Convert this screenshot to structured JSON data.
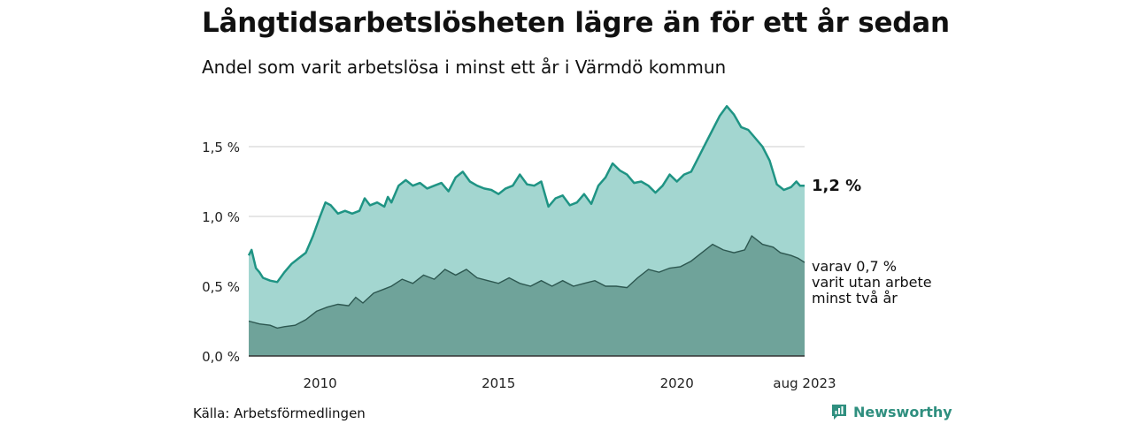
{
  "title": "Långtidsarbetslösheten lägre än för ett år sedan",
  "subtitle": "Andel som varit arbetslösa i minst ett år i Värmdö kommun",
  "source": "Källa: Arbetsförmedlingen",
  "brand": {
    "name": "Newsworthy",
    "icon": "newsworthy-logo-icon",
    "color": "#2f8f7f"
  },
  "chart_data": {
    "type": "area",
    "title": "Långtidsarbetslösheten lägre än för ett år sedan",
    "subtitle": "Andel som varit arbetslösa i minst ett år i Värmdö kommun",
    "unit": "%",
    "x_range": [
      2008.0,
      2023.58
    ],
    "ylim": [
      0,
      1.85
    ],
    "y_ticks": [
      {
        "value": 0.0,
        "label": "0,0 %"
      },
      {
        "value": 0.5,
        "label": "0,5 %"
      },
      {
        "value": 1.0,
        "label": "1,0 %"
      },
      {
        "value": 1.5,
        "label": "1,5 %"
      }
    ],
    "x_ticks": [
      {
        "value": 2010,
        "label": "2010"
      },
      {
        "value": 2015,
        "label": "2015"
      },
      {
        "value": 2020,
        "label": "2020"
      },
      {
        "value": 2023.58,
        "label": "aug 2023"
      }
    ],
    "grid": true,
    "colors": {
      "total_fill": "#a3d6d0",
      "total_line": "#1f9484",
      "sub_fill": "#6fa39a",
      "sub_line": "#2d5750",
      "grid": "#dddddd"
    },
    "end_labels": {
      "total": "1,2 %",
      "sub": [
        "varav 0,7 %",
        "varit utan arbete",
        "minst två år"
      ]
    },
    "series": [
      {
        "name": "minst ett år",
        "points": [
          [
            2008.0,
            0.72
          ],
          [
            2008.08,
            0.76
          ],
          [
            2008.2,
            0.63
          ],
          [
            2008.3,
            0.6
          ],
          [
            2008.4,
            0.56
          ],
          [
            2008.6,
            0.54
          ],
          [
            2008.8,
            0.53
          ],
          [
            2009.0,
            0.6
          ],
          [
            2009.2,
            0.66
          ],
          [
            2009.4,
            0.7
          ],
          [
            2009.6,
            0.74
          ],
          [
            2009.8,
            0.86
          ],
          [
            2010.0,
            1.0
          ],
          [
            2010.15,
            1.1
          ],
          [
            2010.3,
            1.08
          ],
          [
            2010.5,
            1.02
          ],
          [
            2010.7,
            1.04
          ],
          [
            2010.9,
            1.02
          ],
          [
            2011.1,
            1.04
          ],
          [
            2011.25,
            1.13
          ],
          [
            2011.4,
            1.08
          ],
          [
            2011.6,
            1.1
          ],
          [
            2011.8,
            1.07
          ],
          [
            2011.9,
            1.14
          ],
          [
            2012.0,
            1.1
          ],
          [
            2012.2,
            1.22
          ],
          [
            2012.4,
            1.26
          ],
          [
            2012.6,
            1.22
          ],
          [
            2012.8,
            1.24
          ],
          [
            2013.0,
            1.2
          ],
          [
            2013.2,
            1.22
          ],
          [
            2013.4,
            1.24
          ],
          [
            2013.6,
            1.18
          ],
          [
            2013.8,
            1.28
          ],
          [
            2014.0,
            1.32
          ],
          [
            2014.2,
            1.25
          ],
          [
            2014.4,
            1.22
          ],
          [
            2014.6,
            1.2
          ],
          [
            2014.8,
            1.19
          ],
          [
            2015.0,
            1.16
          ],
          [
            2015.2,
            1.2
          ],
          [
            2015.4,
            1.22
          ],
          [
            2015.6,
            1.3
          ],
          [
            2015.8,
            1.23
          ],
          [
            2016.0,
            1.22
          ],
          [
            2016.2,
            1.25
          ],
          [
            2016.4,
            1.07
          ],
          [
            2016.6,
            1.13
          ],
          [
            2016.8,
            1.15
          ],
          [
            2017.0,
            1.08
          ],
          [
            2017.2,
            1.1
          ],
          [
            2017.4,
            1.16
          ],
          [
            2017.6,
            1.09
          ],
          [
            2017.8,
            1.22
          ],
          [
            2018.0,
            1.28
          ],
          [
            2018.2,
            1.38
          ],
          [
            2018.4,
            1.33
          ],
          [
            2018.6,
            1.3
          ],
          [
            2018.8,
            1.24
          ],
          [
            2019.0,
            1.25
          ],
          [
            2019.2,
            1.22
          ],
          [
            2019.4,
            1.17
          ],
          [
            2019.6,
            1.22
          ],
          [
            2019.8,
            1.3
          ],
          [
            2020.0,
            1.25
          ],
          [
            2020.2,
            1.3
          ],
          [
            2020.4,
            1.32
          ],
          [
            2020.6,
            1.42
          ],
          [
            2020.8,
            1.52
          ],
          [
            2021.0,
            1.62
          ],
          [
            2021.2,
            1.72
          ],
          [
            2021.4,
            1.79
          ],
          [
            2021.6,
            1.73
          ],
          [
            2021.8,
            1.64
          ],
          [
            2022.0,
            1.62
          ],
          [
            2022.2,
            1.56
          ],
          [
            2022.4,
            1.5
          ],
          [
            2022.6,
            1.4
          ],
          [
            2022.8,
            1.23
          ],
          [
            2023.0,
            1.19
          ],
          [
            2023.2,
            1.21
          ],
          [
            2023.35,
            1.25
          ],
          [
            2023.45,
            1.22
          ],
          [
            2023.58,
            1.22
          ]
        ]
      },
      {
        "name": "varit utan arbete minst två år",
        "points": [
          [
            2008.0,
            0.25
          ],
          [
            2008.3,
            0.23
          ],
          [
            2008.6,
            0.22
          ],
          [
            2008.8,
            0.2
          ],
          [
            2009.0,
            0.21
          ],
          [
            2009.3,
            0.22
          ],
          [
            2009.6,
            0.26
          ],
          [
            2009.9,
            0.32
          ],
          [
            2010.2,
            0.35
          ],
          [
            2010.5,
            0.37
          ],
          [
            2010.8,
            0.36
          ],
          [
            2011.0,
            0.42
          ],
          [
            2011.2,
            0.38
          ],
          [
            2011.5,
            0.45
          ],
          [
            2011.8,
            0.48
          ],
          [
            2012.0,
            0.5
          ],
          [
            2012.3,
            0.55
          ],
          [
            2012.6,
            0.52
          ],
          [
            2012.9,
            0.58
          ],
          [
            2013.2,
            0.55
          ],
          [
            2013.5,
            0.62
          ],
          [
            2013.8,
            0.58
          ],
          [
            2014.1,
            0.62
          ],
          [
            2014.4,
            0.56
          ],
          [
            2014.7,
            0.54
          ],
          [
            2015.0,
            0.52
          ],
          [
            2015.3,
            0.56
          ],
          [
            2015.6,
            0.52
          ],
          [
            2015.9,
            0.5
          ],
          [
            2016.2,
            0.54
          ],
          [
            2016.5,
            0.5
          ],
          [
            2016.8,
            0.54
          ],
          [
            2017.1,
            0.5
          ],
          [
            2017.4,
            0.52
          ],
          [
            2017.7,
            0.54
          ],
          [
            2018.0,
            0.5
          ],
          [
            2018.3,
            0.5
          ],
          [
            2018.6,
            0.49
          ],
          [
            2018.9,
            0.56
          ],
          [
            2019.2,
            0.62
          ],
          [
            2019.5,
            0.6
          ],
          [
            2019.8,
            0.63
          ],
          [
            2020.1,
            0.64
          ],
          [
            2020.4,
            0.68
          ],
          [
            2020.7,
            0.74
          ],
          [
            2021.0,
            0.8
          ],
          [
            2021.3,
            0.76
          ],
          [
            2021.6,
            0.74
          ],
          [
            2021.9,
            0.76
          ],
          [
            2022.1,
            0.86
          ],
          [
            2022.4,
            0.8
          ],
          [
            2022.7,
            0.78
          ],
          [
            2022.9,
            0.74
          ],
          [
            2023.2,
            0.72
          ],
          [
            2023.4,
            0.7
          ],
          [
            2023.58,
            0.67
          ]
        ]
      }
    ]
  }
}
